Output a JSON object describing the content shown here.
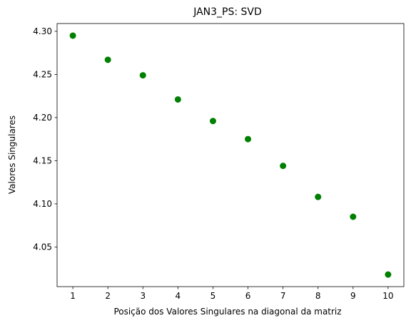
{
  "chart_data": {
    "type": "scatter",
    "title": "JAN3_PS: SVD",
    "xlabel": "Posição dos Valores Singulares na diagonal da matriz",
    "ylabel": "Valores Singulares",
    "x": [
      1,
      2,
      3,
      4,
      5,
      6,
      7,
      8,
      9,
      10
    ],
    "y": [
      4.295,
      4.267,
      4.249,
      4.221,
      4.196,
      4.175,
      4.144,
      4.108,
      4.085,
      4.018
    ],
    "xlim": [
      0.55,
      10.45
    ],
    "ylim": [
      4.004,
      4.309
    ],
    "xticks": [
      1,
      2,
      3,
      4,
      5,
      6,
      7,
      8,
      9,
      10
    ],
    "xtick_labels": [
      "1",
      "2",
      "3",
      "4",
      "5",
      "6",
      "7",
      "8",
      "9",
      "10"
    ],
    "yticks": [
      4.05,
      4.1,
      4.15,
      4.2,
      4.25,
      4.3
    ],
    "ytick_labels": [
      "4.05",
      "4.10",
      "4.15",
      "4.20",
      "4.25",
      "4.30"
    ],
    "grid": false,
    "marker_color": "#008000"
  }
}
